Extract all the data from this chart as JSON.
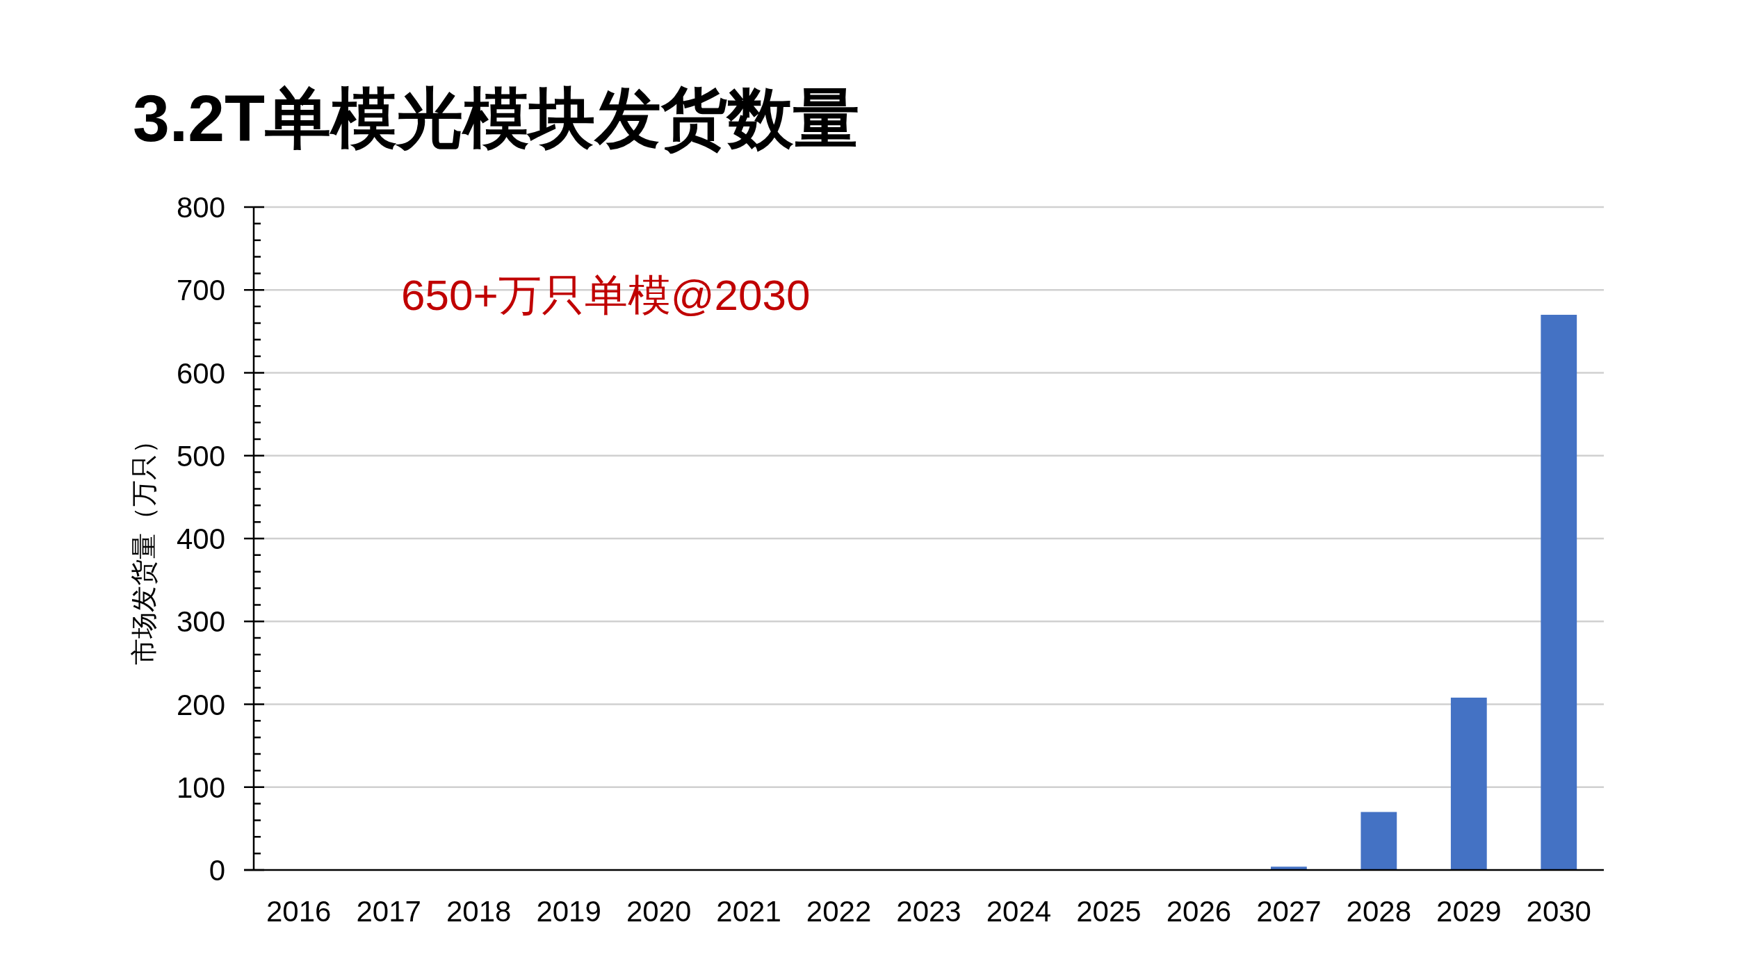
{
  "chart_data": {
    "type": "bar",
    "title": "3.2T单模光模块发货数量",
    "ylabel": "市场发货量（万只）",
    "annotations": [
      "650+万只单模@2030"
    ],
    "categories": [
      "2016",
      "2017",
      "2018",
      "2019",
      "2020",
      "2021",
      "2022",
      "2023",
      "2024",
      "2025",
      "2026",
      "2027",
      "2028",
      "2029",
      "2030"
    ],
    "values": [
      0,
      0,
      0,
      0,
      0,
      0,
      0,
      0,
      0,
      0,
      0,
      4,
      70,
      208,
      670
    ],
    "color": "#4472c4",
    "ylim": [
      0,
      800
    ],
    "yticks": [
      0,
      100,
      200,
      300,
      400,
      500,
      600,
      700,
      800
    ],
    "grid": "y"
  }
}
